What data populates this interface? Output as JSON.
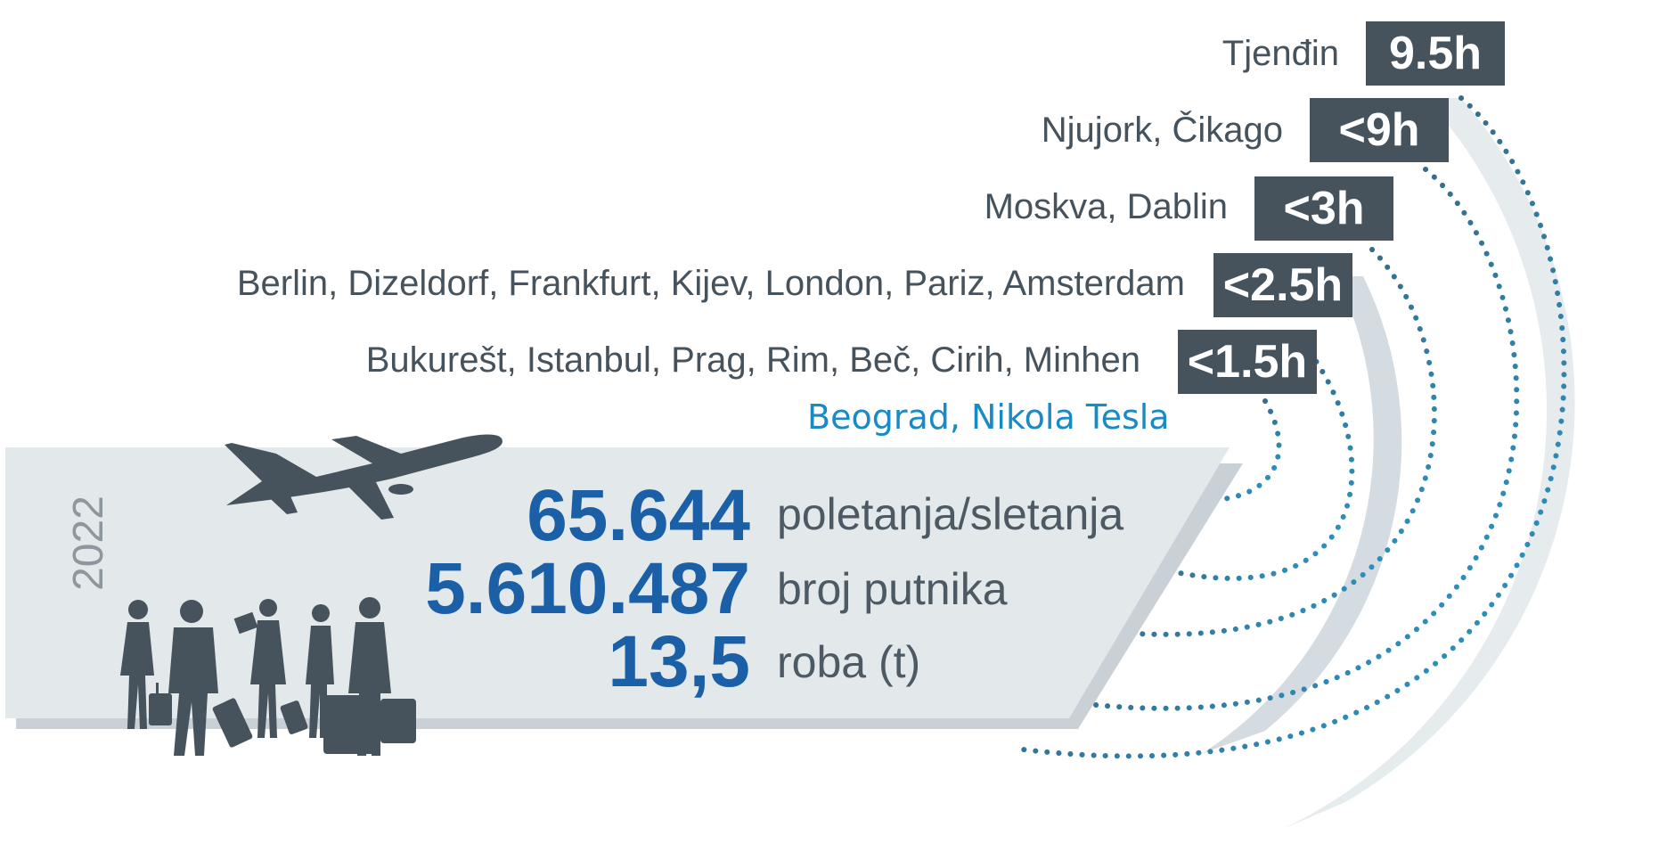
{
  "destinations": [
    {
      "label": "Tjenđin",
      "time": "9.5h"
    },
    {
      "label": "Njujork, Čikago",
      "time": "<9h"
    },
    {
      "label": "Moskva, Dablin",
      "time": "<3h"
    },
    {
      "label": "Berlin, Dizeldorf, Frankfurt, Kijev, London, Pariz, Amsterdam",
      "time": "<2.5h"
    },
    {
      "label": "Bukurešt, Istanbul, Prag, Rim, Beč, Cirih, Minhen",
      "time": "<1.5h"
    }
  ],
  "origin": "Beograd, Nikola Tesla",
  "year": "2022",
  "stats": [
    {
      "value": "65.644",
      "label": "poletanja/sletanja"
    },
    {
      "value": "5.610.487",
      "label": "broj putnika"
    },
    {
      "value": "13,5",
      "label": "roba (t)"
    }
  ],
  "colors": {
    "badge": "#46535d",
    "panel": "#e3e8eb",
    "panel_shadow": "#c9d1d6",
    "value": "#1b5fa6",
    "origin": "#1a8ac4",
    "silhouette": "#46525c"
  },
  "icons": [
    "airplane-icon",
    "travelers-icon"
  ]
}
